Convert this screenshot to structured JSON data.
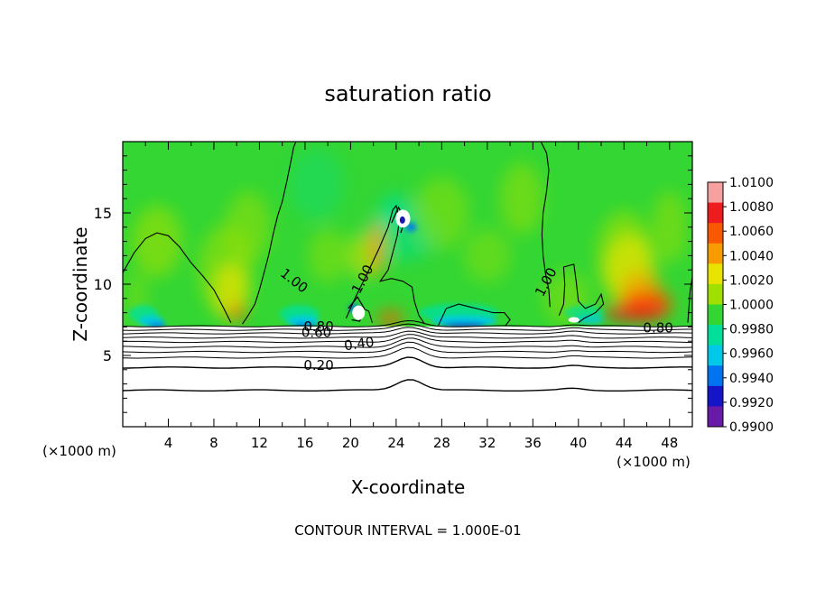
{
  "chart_data": {
    "type": "heatmap",
    "title": "saturation ratio",
    "xlabel": "X-coordinate",
    "ylabel": "Z-coordinate",
    "x_unit_left": "(×1000 m)",
    "x_unit_right": "(×1000 m)",
    "xlim": [
      0,
      50
    ],
    "ylim": [
      0,
      20
    ],
    "x_ticks": [
      4,
      8,
      12,
      16,
      20,
      24,
      28,
      32,
      36,
      40,
      44,
      48
    ],
    "y_ticks": [
      5,
      10,
      15
    ],
    "footer": "CONTOUR INTERVAL = 1.000E-01",
    "colorbar": {
      "levels": [
        1.01,
        1.008,
        1.006,
        1.004,
        1.002,
        1.0,
        0.998,
        0.996,
        0.994,
        0.992,
        0.99
      ],
      "labels": [
        "1.0100",
        "1.0080",
        "1.0060",
        "1.0040",
        "1.0020",
        "1.0000",
        "0.9980",
        "0.9960",
        "0.9940",
        "0.9920",
        "0.9900"
      ],
      "colors": [
        "#f7a0a0",
        "#ee1c1c",
        "#f85800",
        "#f89b00",
        "#e8e400",
        "#a0e000",
        "#33d633",
        "#00e09a",
        "#00c8e8",
        "#0074f0",
        "#1414c8",
        "#6a1aa8"
      ]
    },
    "field_level_at_cloud_base": 1.0,
    "cloud_base_z": 7.0,
    "contour_labels": [
      {
        "text": "1.00",
        "x": 14.8,
        "z": 10.0
      },
      {
        "text": "1.00",
        "x": 21.4,
        "z": 10.2
      },
      {
        "text": "1.00",
        "x": 37.5,
        "z": 10.0
      },
      {
        "text": "0.80",
        "x": 17.2,
        "z": 6.7
      },
      {
        "text": "0.60",
        "x": 17.0,
        "z": 6.3
      },
      {
        "text": "0.80",
        "x": 47.0,
        "z": 6.6
      },
      {
        "text": "0.40",
        "x": 20.8,
        "z": 5.5
      },
      {
        "text": "0.20",
        "x": 17.2,
        "z": 4.0
      }
    ]
  }
}
